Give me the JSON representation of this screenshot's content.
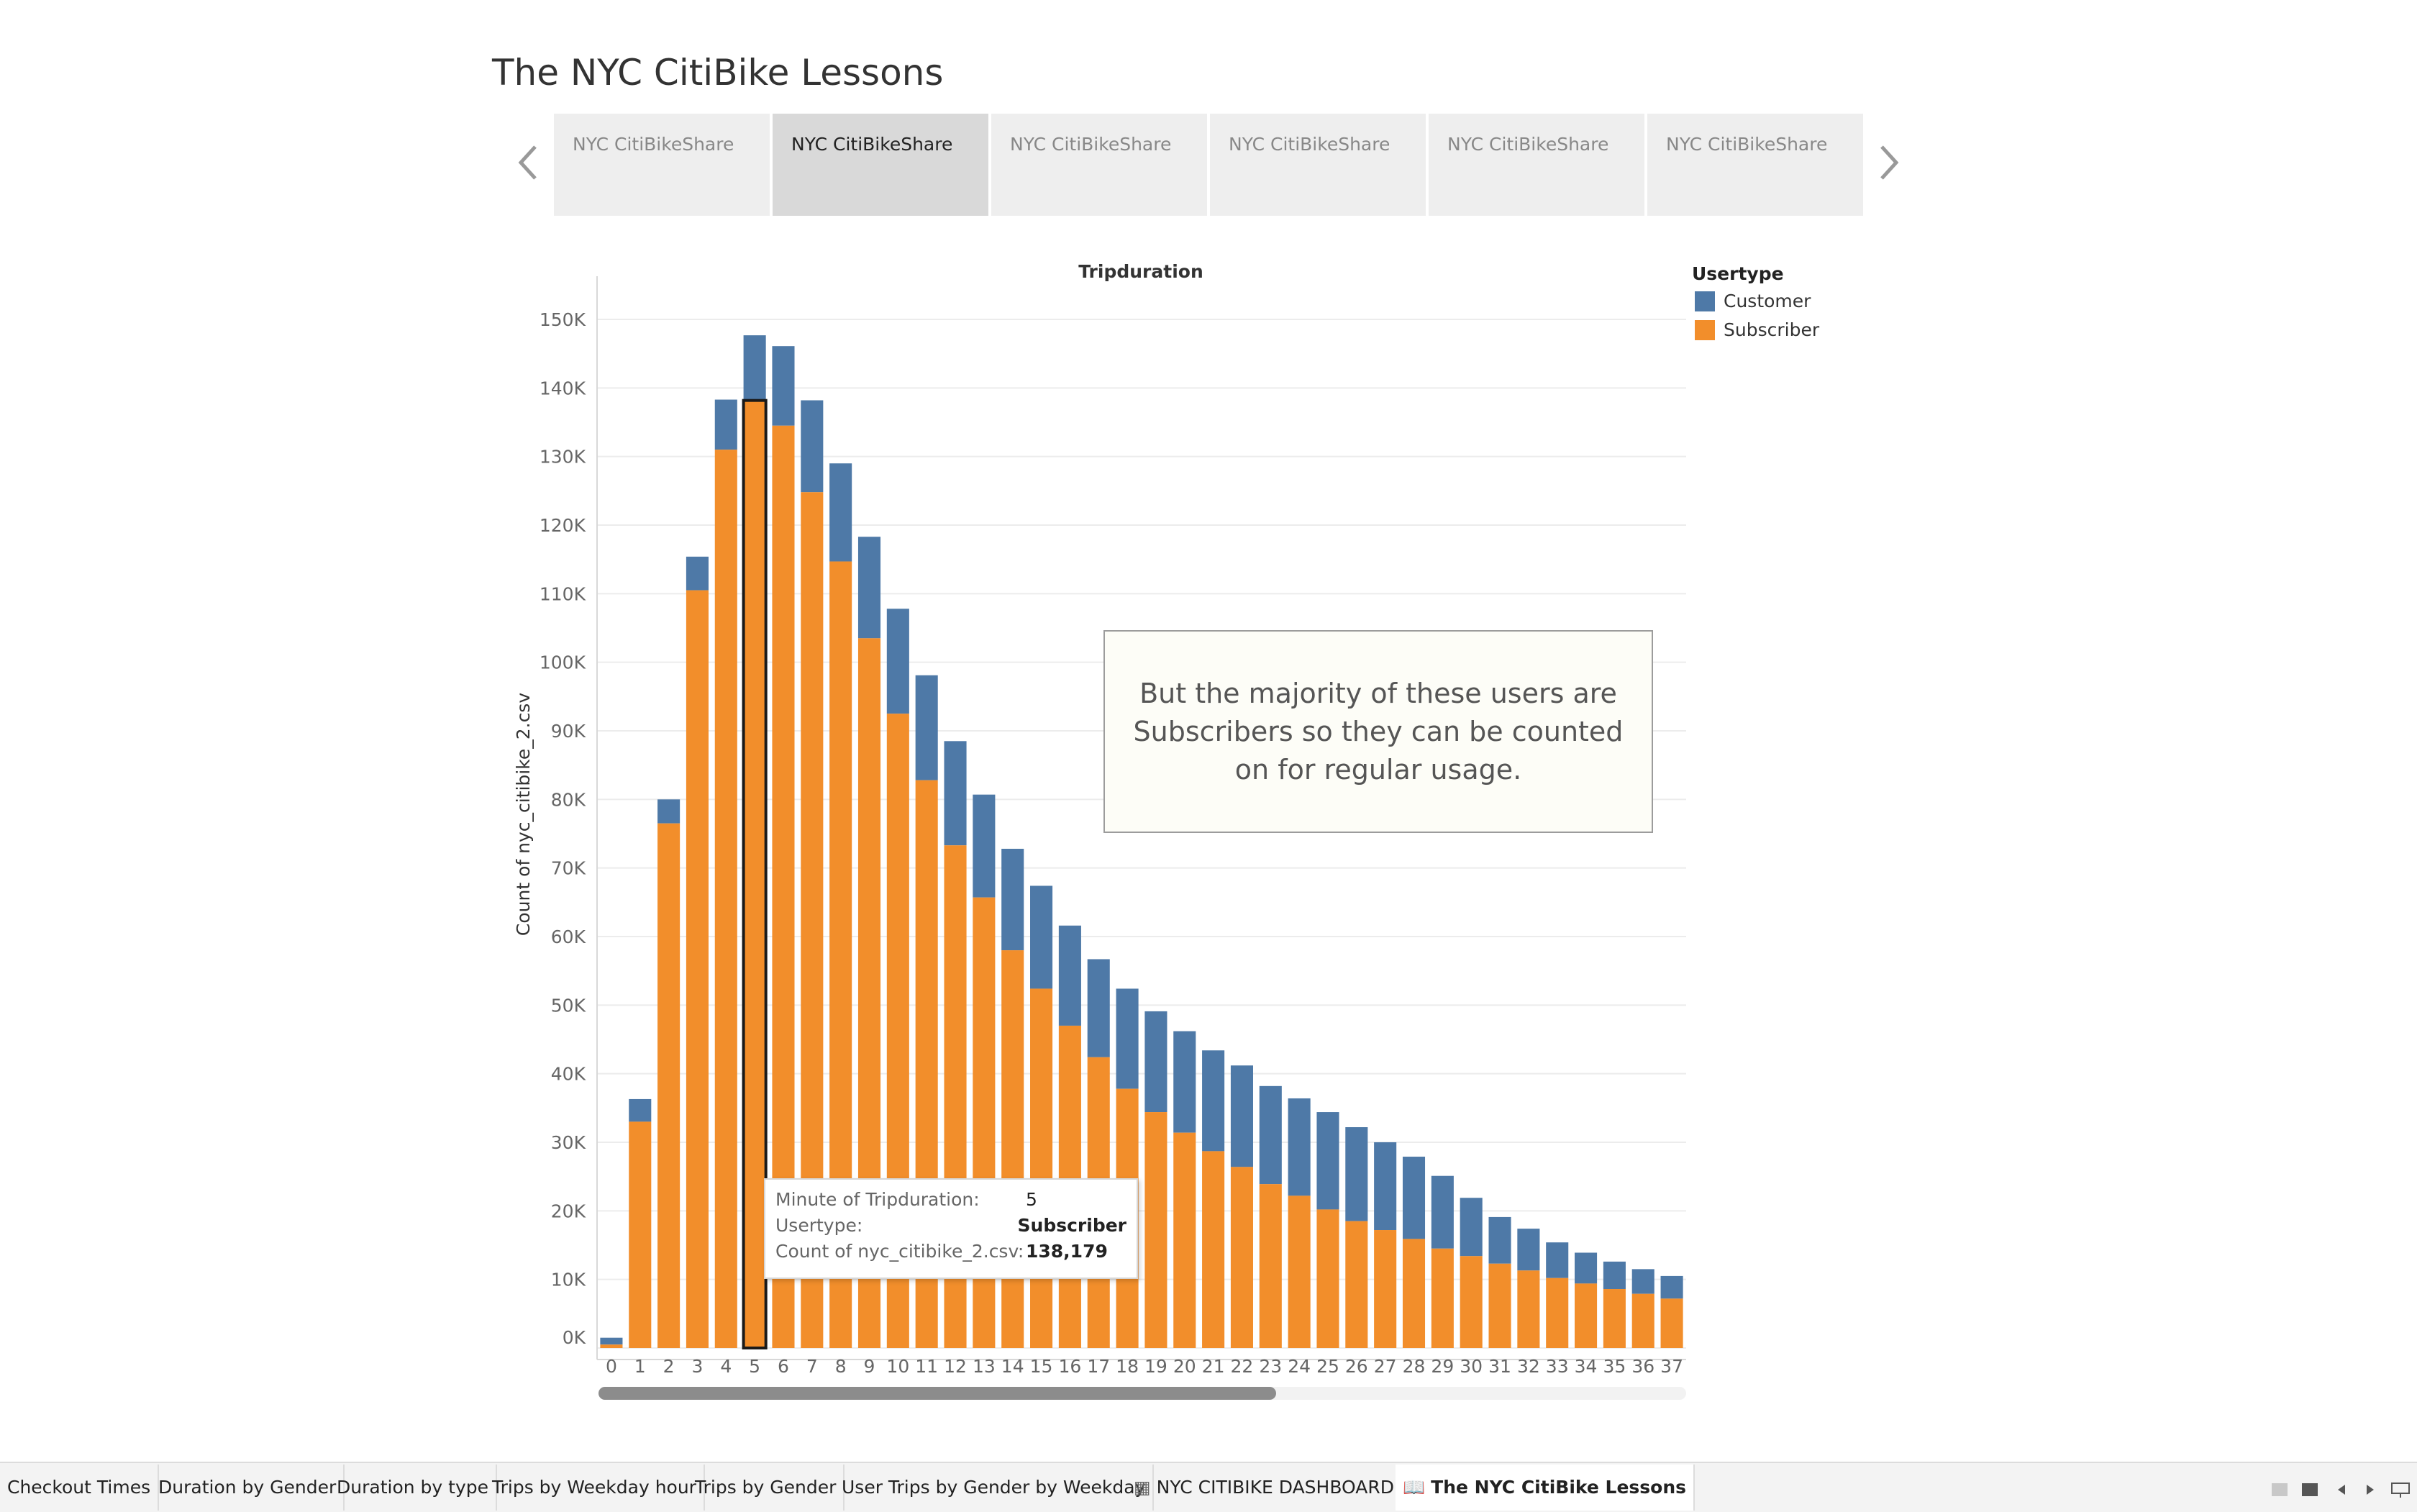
{
  "story": {
    "title": "The NYC CitiBike Lessons",
    "points": [
      {
        "label": "NYC CitiBikeShare",
        "active": false
      },
      {
        "label": "NYC CitiBikeShare",
        "active": true
      },
      {
        "label": "NYC CitiBikeShare",
        "active": false
      },
      {
        "label": "NYC CitiBikeShare",
        "active": false
      },
      {
        "label": "NYC CitiBikeShare",
        "active": false
      },
      {
        "label": "NYC CitiBikeShare",
        "active": false
      }
    ]
  },
  "colors": {
    "customer": "#4e79a7",
    "subscriber": "#f28e2b",
    "highlight": "#1a1a1a"
  },
  "chart_data": {
    "type": "bar",
    "stacked": true,
    "title": "Tripduration",
    "xlabel": "",
    "ylabel": "Count of nyc_citibike_2.csv",
    "ylim": [
      0,
      150000
    ],
    "yticks": [
      "0K",
      "10K",
      "20K",
      "30K",
      "40K",
      "50K",
      "60K",
      "70K",
      "80K",
      "90K",
      "100K",
      "110K",
      "120K",
      "130K",
      "140K",
      "150K"
    ],
    "categories": [
      "0",
      "1",
      "2",
      "3",
      "4",
      "5",
      "6",
      "7",
      "8",
      "9",
      "10",
      "11",
      "12",
      "13",
      "14",
      "15",
      "16",
      "17",
      "18",
      "19",
      "20",
      "21",
      "22",
      "23",
      "24",
      "25",
      "26",
      "27",
      "28",
      "29",
      "30",
      "31",
      "32",
      "33",
      "34",
      "35",
      "36",
      "37"
    ],
    "series": [
      {
        "name": "Subscriber",
        "values": [
          500,
          33000,
          76500,
          110500,
          131000,
          138179,
          134500,
          124800,
          114700,
          103500,
          92500,
          82800,
          73300,
          65700,
          58000,
          52400,
          47000,
          42400,
          37800,
          34400,
          31400,
          28700,
          26400,
          23900,
          22200,
          20200,
          18500,
          17200,
          15900,
          14500,
          13400,
          12300,
          11300,
          10200,
          9400,
          8600,
          7900,
          7200
        ]
      },
      {
        "name": "Customer",
        "values": [
          1000,
          3300,
          3500,
          4900,
          7300,
          9500,
          11600,
          13400,
          14300,
          14800,
          15300,
          15300,
          15200,
          15000,
          14800,
          15000,
          14600,
          14300,
          14600,
          14700,
          14800,
          14700,
          14800,
          14300,
          14200,
          14200,
          13700,
          12800,
          12000,
          10600,
          8500,
          6800,
          6100,
          5200,
          4500,
          4000,
          3600,
          3300
        ]
      }
    ],
    "highlight": {
      "category": "5",
      "series": "Subscriber"
    },
    "legend": {
      "title": "Usertype",
      "entries": [
        "Customer",
        "Subscriber"
      ],
      "position": "top-right"
    }
  },
  "annotation": {
    "text": "But the majority of these users are Subscribers so they can be counted on for regular usage."
  },
  "tooltip": {
    "rows": [
      {
        "key": "Minute of Tripduration:",
        "value": "5"
      },
      {
        "key": "Usertype:",
        "value": "Subscriber"
      },
      {
        "key": "Count of nyc_citibike_2.csv:",
        "value": "138,179"
      }
    ]
  },
  "tabs": [
    {
      "label": "Checkout Times",
      "icon": "",
      "active": false
    },
    {
      "label": "Duration by Gender",
      "icon": "",
      "active": false
    },
    {
      "label": "Duration by type",
      "icon": "",
      "active": false
    },
    {
      "label": "Trips by Weekday hour",
      "icon": "",
      "active": false
    },
    {
      "label": "Trips by Gender",
      "icon": "",
      "active": false
    },
    {
      "label": "User Trips by Gender by Weekday",
      "icon": "",
      "active": false
    },
    {
      "label": "NYC CITIBIKE DASHBOARD",
      "icon": "dashboard-icon",
      "active": false
    },
    {
      "label": "The NYC CitiBike Lessons",
      "icon": "story-icon",
      "active": true
    }
  ]
}
